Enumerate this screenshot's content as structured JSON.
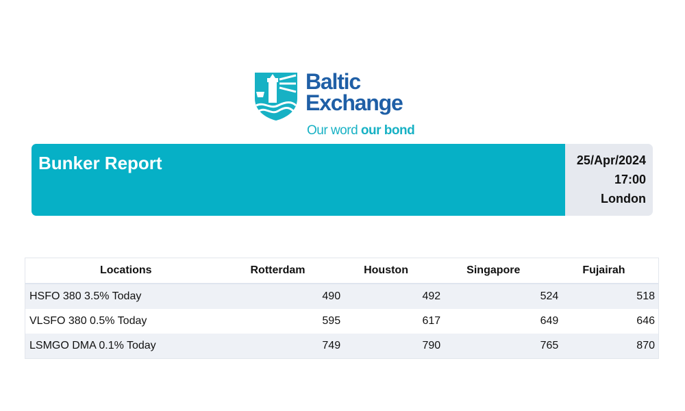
{
  "logo": {
    "brand_line1": "Baltic",
    "brand_line2": "Exchange",
    "tagline_part1": "Our word ",
    "tagline_part2": "our bond",
    "colors": {
      "brand": "#1f5fa6",
      "accent": "#17b1c4"
    }
  },
  "banner": {
    "title": "Bunker Report",
    "date": "25/Apr/2024",
    "time": "17:00",
    "location": "London",
    "colors": {
      "title_bg": "#06b0c6",
      "meta_bg": "#e6e9ef"
    }
  },
  "table": {
    "headers": [
      "Locations",
      "Rotterdam",
      "Houston",
      "Singapore",
      "Fujairah"
    ],
    "rows": [
      {
        "label": "HSFO 380 3.5% Today",
        "values": [
          "490",
          "492",
          "524",
          "518"
        ]
      },
      {
        "label": "VLSFO 380 0.5% Today",
        "values": [
          "595",
          "617",
          "649",
          "646"
        ]
      },
      {
        "label": "LSMGO DMA 0.1% Today",
        "values": [
          "749",
          "790",
          "765",
          "870"
        ]
      }
    ]
  }
}
